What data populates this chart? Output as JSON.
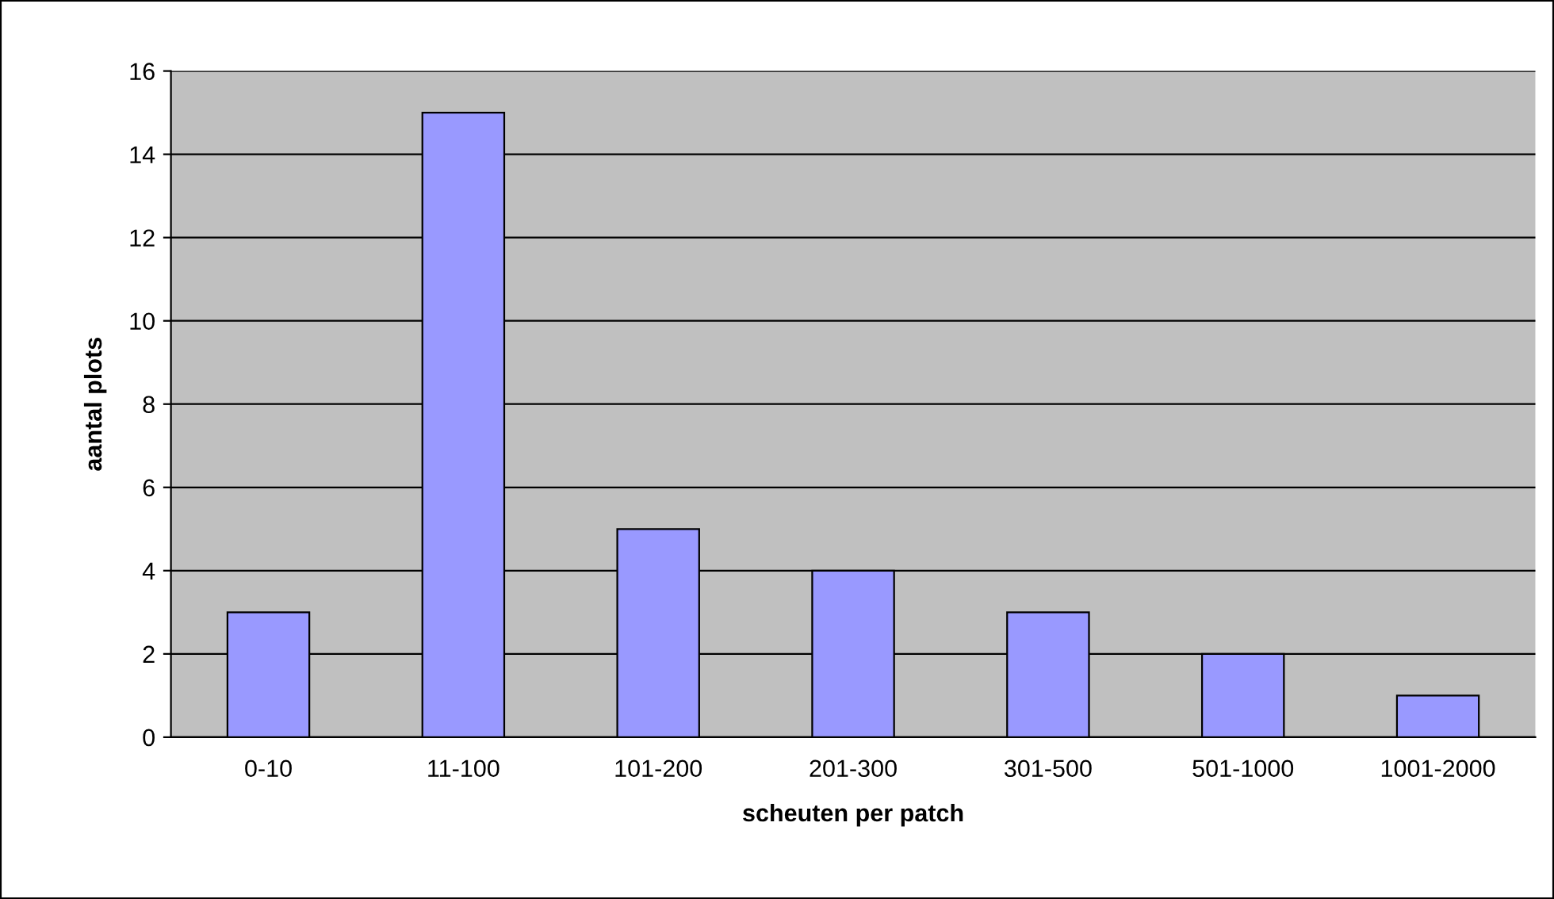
{
  "chart_data": {
    "type": "bar",
    "xlabel": "scheuten per patch",
    "ylabel": "aantal plots",
    "categories": [
      "0-10",
      "11-100",
      "101-200",
      "201-300",
      "301-500",
      "501-1000",
      "1001-2000"
    ],
    "values": [
      3,
      15,
      5,
      4,
      3,
      2,
      1
    ],
    "color": "#9999ff",
    "ylim": [
      0,
      16
    ],
    "yticks": [
      0,
      2,
      4,
      6,
      8,
      10,
      12,
      14,
      16
    ],
    "grid": "y"
  }
}
